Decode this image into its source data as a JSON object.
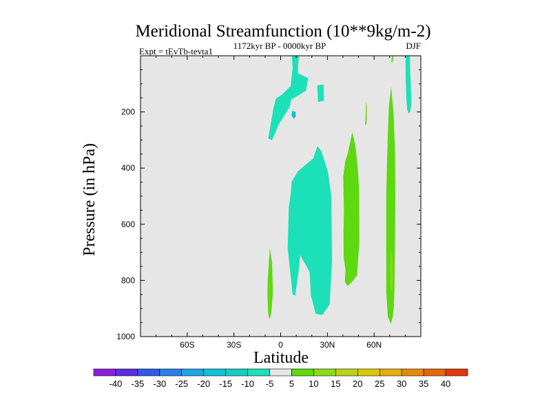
{
  "chart_data": {
    "type": "filled-contour",
    "title": "Meridional Streamfunction (10**9kg/m-2)",
    "subtitle_left": "Expt = tEvTb-tevta1",
    "subtitle_center": "1172kyr BP - 0000kyr BP",
    "subtitle_right": "DJF",
    "xlabel": "Latitude",
    "ylabel": "Pressure (in hPa)",
    "xlim": [
      -90,
      90
    ],
    "ylim": [
      1000,
      0
    ],
    "x_ticks": [
      {
        "value": -60,
        "label": "60S"
      },
      {
        "value": -30,
        "label": "30S"
      },
      {
        "value": 0,
        "label": "0"
      },
      {
        "value": 30,
        "label": "30N"
      },
      {
        "value": 60,
        "label": "60N"
      }
    ],
    "y_ticks": [
      {
        "value": 200,
        "label": "200"
      },
      {
        "value": 400,
        "label": "400"
      },
      {
        "value": 600,
        "label": "600"
      },
      {
        "value": 800,
        "label": "800"
      },
      {
        "value": 1000,
        "label": "1000"
      }
    ],
    "background_color": "#e6e6e6",
    "colorbar": {
      "labels": [
        "-40",
        "-35",
        "-30",
        "-25",
        "-20",
        "-15",
        "-10",
        "-5",
        "5",
        "10",
        "15",
        "20",
        "25",
        "30",
        "35",
        "40"
      ],
      "colors": [
        "#8a1fdc",
        "#5a2fe0",
        "#2e5ae6",
        "#2a7fe8",
        "#1ea4e3",
        "#10bfd8",
        "#16cdc0",
        "#1ce0b8",
        "#e6e6e6",
        "#5ed80f",
        "#8ed818",
        "#bad31a",
        "#d8c80e",
        "#e4ae0c",
        "#e68a0c",
        "#e2660c",
        "#de3a0c"
      ]
    },
    "regions": [
      {
        "name": "upper-tropical-negative",
        "value_range": "-10 to -5",
        "color": "#1ce0b8",
        "points": [
          [
            7.2,
            0
          ],
          [
            11.8,
            0
          ],
          [
            11.2,
            32
          ],
          [
            11,
            62
          ],
          [
            17.7,
            80
          ],
          [
            16.2,
            125
          ],
          [
            7,
            155
          ],
          [
            5.5,
            185
          ],
          [
            -1.3,
            245
          ],
          [
            -5.5,
            300
          ],
          [
            -8,
            295
          ],
          [
            -5,
            200
          ],
          [
            -5,
            195
          ],
          [
            -3,
            152
          ],
          [
            -1.5,
            147
          ],
          [
            0.5,
            140
          ],
          [
            6.4,
            108
          ],
          [
            7.7,
            45
          ]
        ]
      },
      {
        "name": "upper-tropical-core",
        "value_range": "-15 to -10",
        "color": "#10bfd8",
        "points": [
          [
            7.5,
            195
          ],
          [
            9.5,
            200
          ],
          [
            9.8,
            215
          ],
          [
            8.4,
            225
          ],
          [
            7,
            212
          ]
        ]
      },
      {
        "name": "upper-small-patch",
        "value_range": "-10 to -5",
        "color": "#1ce0b8",
        "points": [
          [
            23.5,
            106
          ],
          [
            27.5,
            102
          ],
          [
            27.8,
            160
          ],
          [
            24,
            165
          ]
        ]
      },
      {
        "name": "lower-tropical-negative",
        "value_range": "-10 to -5",
        "color": "#1ce0b8",
        "points": [
          [
            23.6,
            322
          ],
          [
            26,
            338
          ],
          [
            30.3,
            412
          ],
          [
            32.5,
            500
          ],
          [
            33,
            725
          ],
          [
            31.5,
            885
          ],
          [
            28,
            913
          ],
          [
            26.8,
            923
          ],
          [
            22.5,
            919
          ],
          [
            20,
            865
          ],
          [
            19.4,
            855
          ],
          [
            18.6,
            770
          ],
          [
            12.5,
            710
          ],
          [
            11.5,
            770
          ],
          [
            9.3,
            855
          ],
          [
            7.7,
            850
          ],
          [
            4.5,
            685
          ],
          [
            5.2,
            540
          ],
          [
            6.5,
            490
          ],
          [
            7,
            450
          ],
          [
            11,
            412
          ],
          [
            21,
            365
          ]
        ]
      },
      {
        "name": "lower-tropical-positive",
        "value_range": "5 to 10",
        "color": "#5ed80f",
        "points": [
          [
            -7,
            685
          ],
          [
            -5.5,
            738
          ],
          [
            -5,
            845
          ],
          [
            -6,
            915
          ],
          [
            -7,
            940
          ],
          [
            -8,
            920
          ],
          [
            -8.5,
            850
          ],
          [
            -8.3,
            800
          ]
        ]
      },
      {
        "name": "midlatitude-positive",
        "value_range": "5 to 10",
        "color": "#5ed80f",
        "points": [
          [
            46,
            272
          ],
          [
            48,
            320
          ],
          [
            49.5,
            400
          ],
          [
            50.4,
            480
          ],
          [
            50.5,
            665
          ],
          [
            49,
            782
          ],
          [
            46.2,
            803
          ],
          [
            43,
            820
          ],
          [
            41.2,
            805
          ],
          [
            41.6,
            760
          ],
          [
            40.5,
            720
          ],
          [
            40.4,
            640
          ],
          [
            40.6,
            545
          ],
          [
            40.2,
            430
          ],
          [
            41,
            395
          ],
          [
            41.5,
            375
          ],
          [
            43,
            350
          ]
        ]
      },
      {
        "name": "midlatitude-upper-sliver",
        "value_range": "5 to 10",
        "color": "#5ed80f",
        "points": [
          [
            54.8,
            165
          ],
          [
            55.3,
            180
          ],
          [
            55.2,
            240
          ],
          [
            54.3,
            250
          ]
        ]
      },
      {
        "name": "high-latitude-upper-sliver",
        "value_range": "5 to 10",
        "color": "#5ed80f",
        "points": [
          [
            71.6,
            0
          ],
          [
            72.5,
            0
          ],
          [
            71.8,
            25
          ],
          [
            71,
            20
          ]
        ]
      },
      {
        "name": "high-latitude-positive",
        "value_range": "5 to 10",
        "color": "#5ed80f",
        "points": [
          [
            71,
            110
          ],
          [
            72.5,
            205
          ],
          [
            73.4,
            340
          ],
          [
            73.7,
            500
          ],
          [
            73.1,
            820
          ],
          [
            72.6,
            900
          ],
          [
            71.9,
            930
          ],
          [
            70.8,
            955
          ],
          [
            68.8,
            930
          ],
          [
            67.8,
            840
          ],
          [
            67.8,
            500
          ],
          [
            68.4,
            350
          ],
          [
            69,
            250
          ],
          [
            69.5,
            180
          ]
        ]
      },
      {
        "name": "high-latitude-positive-core",
        "value_range": "10 to 15",
        "color": "#8ed818",
        "points": [
          [
            71,
            685
          ],
          [
            71.8,
            735
          ],
          [
            72,
            790
          ],
          [
            71.5,
            845
          ],
          [
            70.8,
            835
          ],
          [
            70.4,
            770
          ],
          [
            70.5,
            710
          ]
        ]
      },
      {
        "name": "high-latitude-upper-negative",
        "value_range": "-10 to -5",
        "color": "#1ce0b8",
        "points": [
          [
            80.2,
            0
          ],
          [
            83,
            0
          ],
          [
            83.1,
            45
          ],
          [
            83.5,
            100
          ],
          [
            84,
            170
          ],
          [
            83.2,
            200
          ],
          [
            82.1,
            205
          ],
          [
            81.2,
            190
          ],
          [
            80.6,
            140
          ],
          [
            80.3,
            80
          ]
        ]
      }
    ]
  }
}
